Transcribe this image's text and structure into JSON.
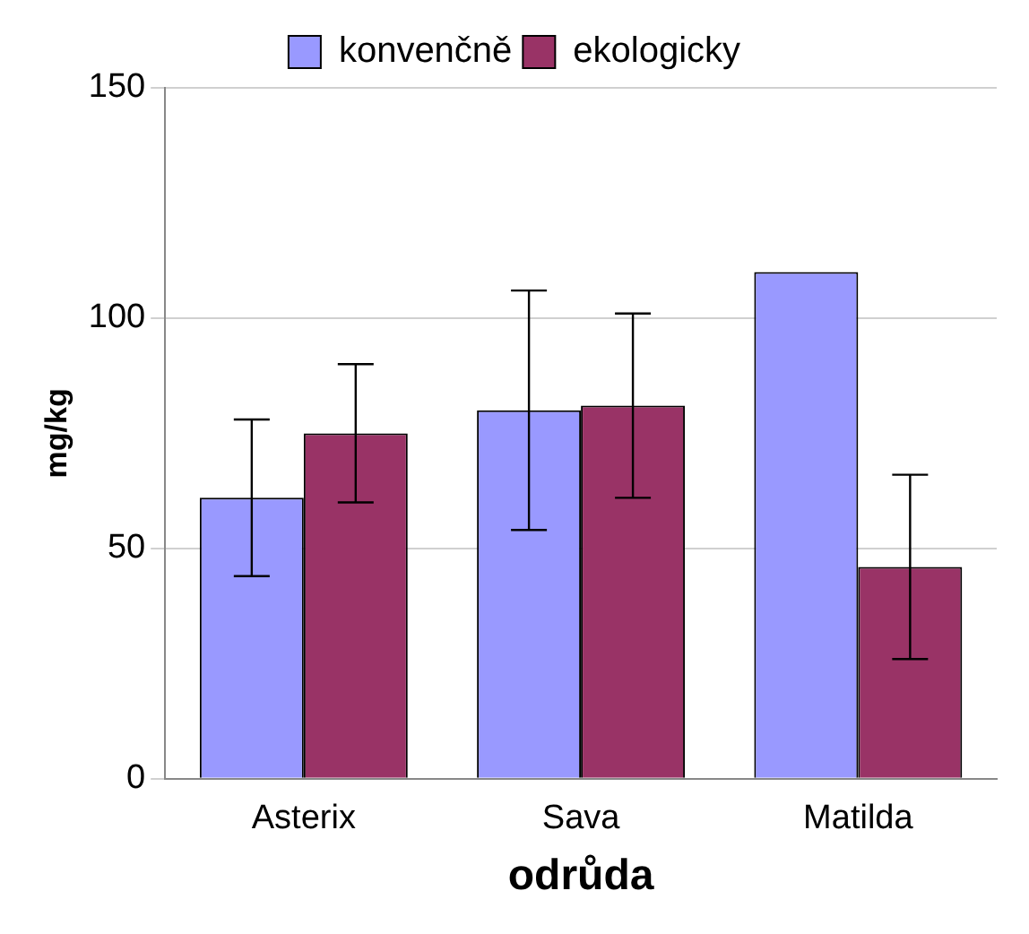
{
  "chart_data": {
    "type": "bar",
    "xlabel": "odrůda",
    "ylabel": "mg/kg",
    "categories": [
      "Asterix",
      "Sava",
      "Matilda"
    ],
    "series": [
      {
        "name": "konvenčně",
        "color": "#9999ff",
        "values": [
          61,
          80,
          110
        ],
        "errors": [
          17,
          26,
          null
        ]
      },
      {
        "name": "ekologicky",
        "color": "#993366",
        "values": [
          75,
          81,
          46
        ],
        "errors": [
          15,
          20,
          20
        ]
      }
    ],
    "ylim": [
      0,
      150
    ],
    "yticks": [
      0,
      50,
      100,
      150
    ],
    "grid": "y",
    "legend": "top"
  }
}
